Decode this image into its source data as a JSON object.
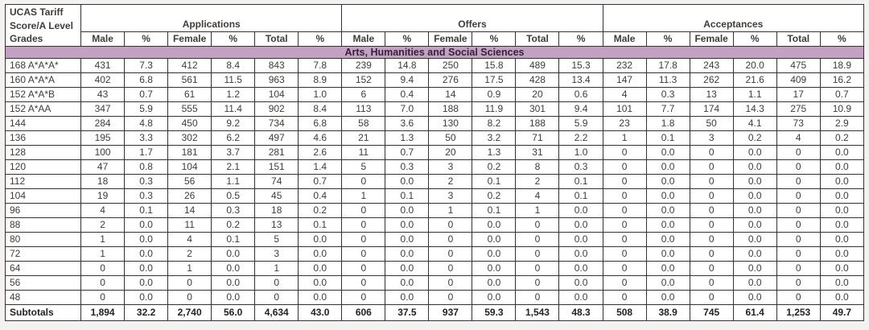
{
  "table": {
    "corner_header": "UCAS Tariff\nScore/A Level\nGrades",
    "groups": [
      {
        "label": "Applications"
      },
      {
        "label": "Offers"
      },
      {
        "label": "Acceptances"
      }
    ],
    "sub_headers": [
      "Male",
      "%",
      "Female",
      "%",
      "Total",
      "%"
    ],
    "section_title": "Arts, Humanities and Social Sciences",
    "rows": [
      {
        "grade": "168 A*A*A*",
        "values": [
          "431",
          "7.3",
          "412",
          "8.4",
          "843",
          "7.8",
          "239",
          "14.8",
          "250",
          "15.8",
          "489",
          "15.3",
          "232",
          "17.8",
          "243",
          "20.0",
          "475",
          "18.9"
        ]
      },
      {
        "grade": "160 A*A*A",
        "values": [
          "402",
          "6.8",
          "561",
          "11.5",
          "963",
          "8.9",
          "152",
          "9.4",
          "276",
          "17.5",
          "428",
          "13.4",
          "147",
          "11.3",
          "262",
          "21.6",
          "409",
          "16.2"
        ]
      },
      {
        "grade": "152 A*A*B",
        "values": [
          "43",
          "0.7",
          "61",
          "1.2",
          "104",
          "1.0",
          "6",
          "0.4",
          "14",
          "0.9",
          "20",
          "0.6",
          "4",
          "0.3",
          "13",
          "1.1",
          "17",
          "0.7"
        ]
      },
      {
        "grade": "152 A*AA",
        "values": [
          "347",
          "5.9",
          "555",
          "11.4",
          "902",
          "8.4",
          "113",
          "7.0",
          "188",
          "11.9",
          "301",
          "9.4",
          "101",
          "7.7",
          "174",
          "14.3",
          "275",
          "10.9"
        ]
      },
      {
        "grade": "144",
        "values": [
          "284",
          "4.8",
          "450",
          "9.2",
          "734",
          "6.8",
          "58",
          "3.6",
          "130",
          "8.2",
          "188",
          "5.9",
          "23",
          "1.8",
          "50",
          "4.1",
          "73",
          "2.9"
        ]
      },
      {
        "grade": "136",
        "values": [
          "195",
          "3.3",
          "302",
          "6.2",
          "497",
          "4.6",
          "21",
          "1.3",
          "50",
          "3.2",
          "71",
          "2.2",
          "1",
          "0.1",
          "3",
          "0.2",
          "4",
          "0.2"
        ]
      },
      {
        "grade": "128",
        "values": [
          "100",
          "1.7",
          "181",
          "3.7",
          "281",
          "2.6",
          "11",
          "0.7",
          "20",
          "1.3",
          "31",
          "1.0",
          "0",
          "0.0",
          "0",
          "0.0",
          "0",
          "0.0"
        ]
      },
      {
        "grade": "120",
        "values": [
          "47",
          "0.8",
          "104",
          "2.1",
          "151",
          "1.4",
          "5",
          "0.3",
          "3",
          "0.2",
          "8",
          "0.3",
          "0",
          "0.0",
          "0",
          "0.0",
          "0",
          "0.0"
        ]
      },
      {
        "grade": "112",
        "values": [
          "18",
          "0.3",
          "56",
          "1.1",
          "74",
          "0.7",
          "0",
          "0.0",
          "2",
          "0.1",
          "2",
          "0.1",
          "0",
          "0.0",
          "0",
          "0.0",
          "0",
          "0.0"
        ]
      },
      {
        "grade": "104",
        "values": [
          "19",
          "0.3",
          "26",
          "0.5",
          "45",
          "0.4",
          "1",
          "0.1",
          "3",
          "0.2",
          "4",
          "0.1",
          "0",
          "0.0",
          "0",
          "0.0",
          "0",
          "0.0"
        ]
      },
      {
        "grade": "96",
        "values": [
          "4",
          "0.1",
          "14",
          "0.3",
          "18",
          "0.2",
          "0",
          "0.0",
          "1",
          "0.1",
          "1",
          "0.0",
          "0",
          "0.0",
          "0",
          "0.0",
          "0",
          "0.0"
        ]
      },
      {
        "grade": "88",
        "values": [
          "2",
          "0.0",
          "11",
          "0.2",
          "13",
          "0.1",
          "0",
          "0.0",
          "0",
          "0.0",
          "0",
          "0.0",
          "0",
          "0.0",
          "0",
          "0.0",
          "0",
          "0.0"
        ]
      },
      {
        "grade": "80",
        "values": [
          "1",
          "0.0",
          "4",
          "0.1",
          "5",
          "0.0",
          "0",
          "0.0",
          "0",
          "0.0",
          "0",
          "0.0",
          "0",
          "0.0",
          "0",
          "0.0",
          "0",
          "0.0"
        ]
      },
      {
        "grade": "72",
        "values": [
          "1",
          "0.0",
          "2",
          "0.0",
          "3",
          "0.0",
          "0",
          "0.0",
          "0",
          "0.0",
          "0",
          "0.0",
          "0",
          "0.0",
          "0",
          "0.0",
          "0",
          "0.0"
        ]
      },
      {
        "grade": "64",
        "values": [
          "0",
          "0.0",
          "1",
          "0.0",
          "1",
          "0.0",
          "0",
          "0.0",
          "0",
          "0.0",
          "0",
          "0.0",
          "0",
          "0.0",
          "0",
          "0.0",
          "0",
          "0.0"
        ]
      },
      {
        "grade": "56",
        "values": [
          "0",
          "0.0",
          "0",
          "0.0",
          "0",
          "0.0",
          "0",
          "0.0",
          "0",
          "0.0",
          "0",
          "0.0",
          "0",
          "0.0",
          "0",
          "0.0",
          "0",
          "0.0"
        ]
      },
      {
        "grade": "48",
        "values": [
          "0",
          "0.0",
          "0",
          "0.0",
          "0",
          "0.0",
          "0",
          "0.0",
          "0",
          "0.0",
          "0",
          "0.0",
          "0",
          "0.0",
          "0",
          "0.0",
          "0",
          "0.0"
        ]
      }
    ],
    "subtotals": {
      "label": "Subtotals",
      "values": [
        "1,894",
        "32.2",
        "2,740",
        "56.0",
        "4,634",
        "43.0",
        "606",
        "37.5",
        "937",
        "59.3",
        "1,543",
        "48.3",
        "508",
        "38.9",
        "745",
        "61.4",
        "1,253",
        "49.7"
      ]
    }
  },
  "colors": {
    "band_background": "#c3a1c5",
    "band_text": "#352334",
    "border": "#37322f",
    "page_background": "#f3f2f0"
  }
}
